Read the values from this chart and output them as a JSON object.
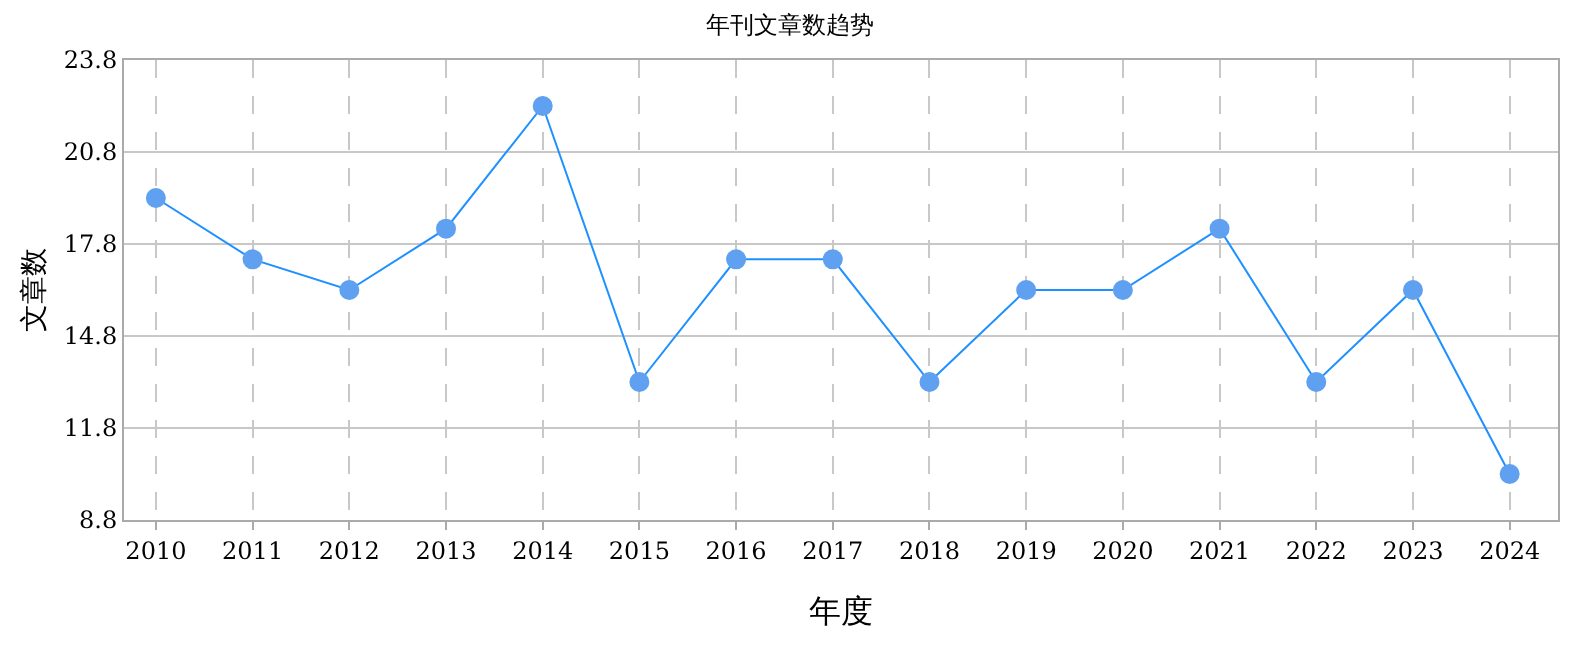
{
  "chart_data": {
    "type": "line",
    "title": "年刊文章数趋势",
    "xlabel": "年度",
    "ylabel": "文章数",
    "categories": [
      "2010",
      "2011",
      "2012",
      "2013",
      "2014",
      "2015",
      "2016",
      "2017",
      "2018",
      "2019",
      "2020",
      "2021",
      "2022",
      "2023",
      "2024"
    ],
    "series": [
      {
        "color": "#1e90ff",
        "values": [
          19.3,
          17.3,
          16.3,
          18.3,
          22.3,
          13.3,
          17.3,
          17.3,
          13.3,
          16.3,
          16.3,
          18.3,
          13.3,
          16.3,
          10.3
        ]
      }
    ],
    "ylim": [
      8.8,
      23.8
    ],
    "yticks": [
      8.8,
      11.8,
      14.8,
      17.8,
      20.8,
      23.8
    ],
    "grid": true,
    "marker": "circle",
    "line_style": "solid"
  }
}
